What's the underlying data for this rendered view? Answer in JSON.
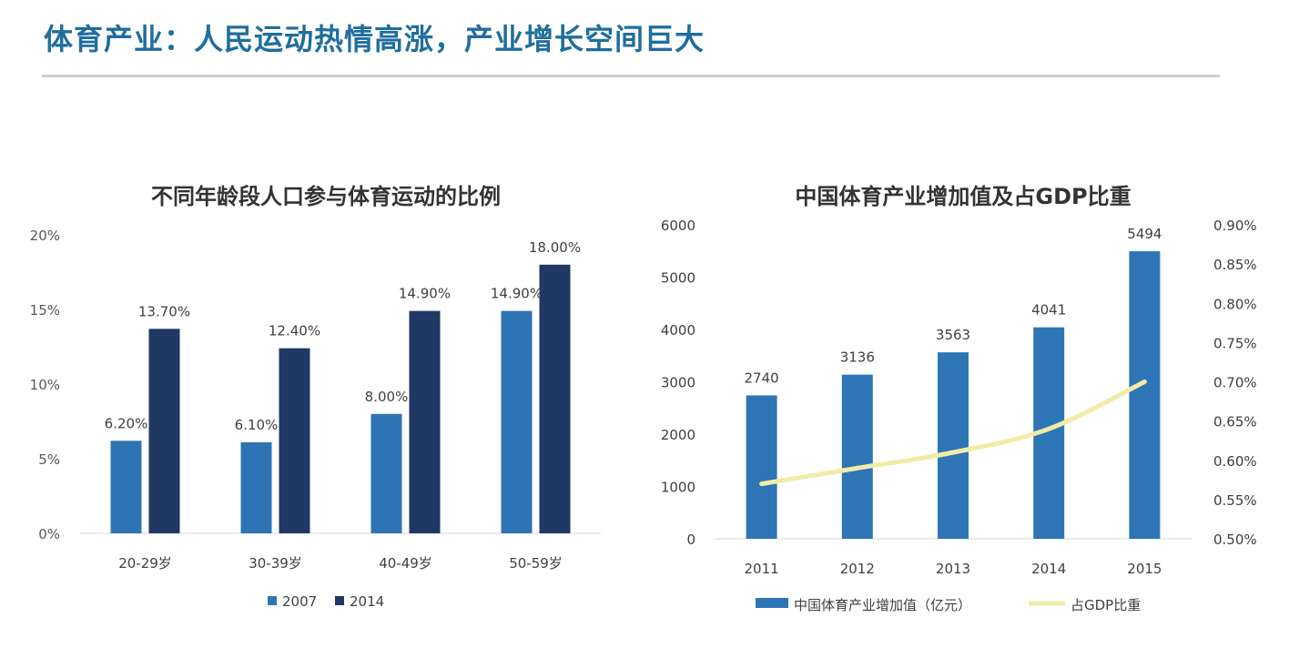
{
  "page": {
    "title": "体育产业：人民运动热情高涨，产业增长空间巨大"
  },
  "colors": {
    "title": "#1f6e9e",
    "bar2007": "#2e74b5",
    "bar2014": "#1f3864",
    "barValue": "#2e75b6",
    "line": "#f2eba8"
  },
  "chart_data": [
    {
      "type": "bar",
      "title": "不同年龄段人口参与体育运动的比例",
      "categories": [
        "20-29岁",
        "30-39岁",
        "40-49岁",
        "50-59岁"
      ],
      "series": [
        {
          "name": "2007",
          "values": [
            6.2,
            6.1,
            8.0,
            14.9
          ],
          "labels": [
            "6.20%",
            "6.10%",
            "8.00%",
            "14.90%"
          ]
        },
        {
          "name": "2014",
          "values": [
            13.7,
            12.4,
            14.9,
            18.0
          ],
          "labels": [
            "13.70%",
            "12.40%",
            "14.90%",
            "18.00%"
          ]
        }
      ],
      "yticks": [
        "0%",
        "5%",
        "10%",
        "15%",
        "20%"
      ],
      "ylim": [
        0,
        20
      ],
      "legend": "bottom"
    },
    {
      "type": "bar+line",
      "title": "中国体育产业增加值及占GDP比重",
      "categories": [
        "2011",
        "2012",
        "2013",
        "2014",
        "2015"
      ],
      "series": [
        {
          "name": "中国体育产业增加值（亿元）",
          "axis": "left",
          "values": [
            2740,
            3136,
            3563,
            4041,
            5494
          ],
          "labels": [
            "2740",
            "3136",
            "3563",
            "4041",
            "5494"
          ]
        },
        {
          "name": "占GDP比重",
          "axis": "right",
          "type": "line",
          "values": [
            0.57,
            0.59,
            0.61,
            0.64,
            0.7
          ]
        }
      ],
      "yticks_left": [
        "0",
        "1000",
        "2000",
        "3000",
        "4000",
        "5000",
        "6000"
      ],
      "ylim_left": [
        0,
        6000
      ],
      "yticks_right": [
        "0.50%",
        "0.55%",
        "0.60%",
        "0.65%",
        "0.70%",
        "0.75%",
        "0.80%",
        "0.85%",
        "0.90%"
      ],
      "ylim_right": [
        0.5,
        0.9
      ],
      "legend": "bottom"
    }
  ]
}
